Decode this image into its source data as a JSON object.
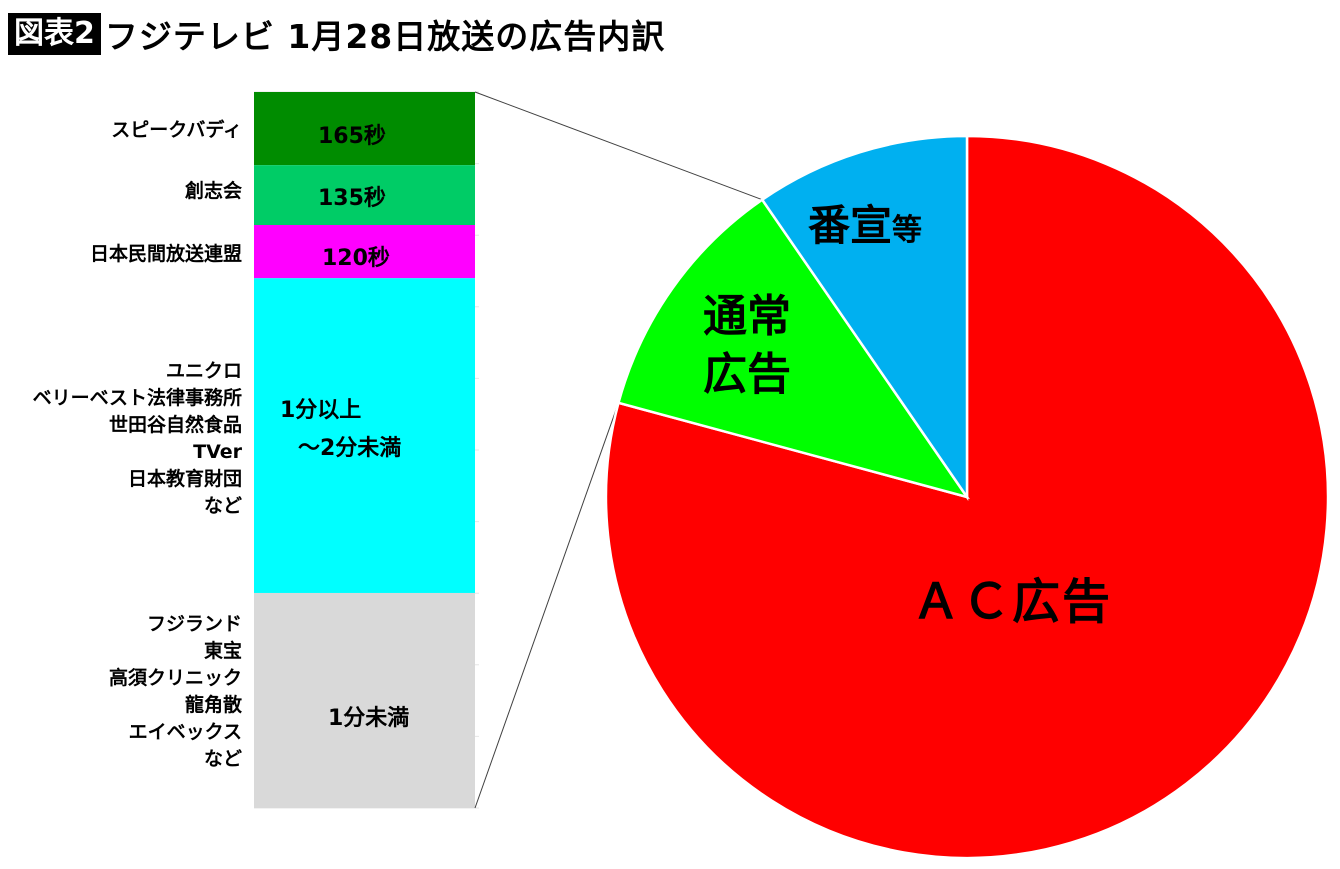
{
  "header": {
    "badge": "図表2",
    "title": "フジテレビ 1月28日放送の広告内訳"
  },
  "chart_data": [
    {
      "type": "pie",
      "start": "12 o'clock",
      "direction": "clockwise",
      "slices": [
        {
          "label": "ＡＣ広告",
          "value": 79.2,
          "color": "#FF0000"
        },
        {
          "label_lines": [
            "通常",
            "広告"
          ],
          "value": 11.2,
          "color": "#00FF00"
        },
        {
          "label": "番宣",
          "label_suffix": "等",
          "value": 9.6,
          "color": "#00B0F0"
        }
      ],
      "exploded_slice": "通常広告"
    },
    {
      "type": "bar",
      "stacked": true,
      "unit": "seconds",
      "grid": true,
      "segments": [
        {
          "category_lines": [
            "スピークバディ"
          ],
          "value": 165,
          "data_label_lines": [
            "165秒"
          ],
          "color": "#008C00"
        },
        {
          "category_lines": [
            "創志会"
          ],
          "value": 135,
          "data_label_lines": [
            "135秒"
          ],
          "color": "#00CC66"
        },
        {
          "category_lines": [
            "日本民間放送連盟"
          ],
          "value": 120,
          "data_label_lines": [
            "120秒"
          ],
          "color": "#FF00FF"
        },
        {
          "category_lines": [
            "ユニクロ",
            "ベリーベスト法律事務所",
            "世田谷自然食品",
            "TVer",
            "日本教育財団",
            "など"
          ],
          "value": 710,
          "data_label_lines": [
            "1分以上",
            "～2分未満"
          ],
          "color": "#00FFFF"
        },
        {
          "category_lines": [
            "フジランド",
            "東宝",
            "高須クリニック",
            "龍角散",
            "エイベックス",
            "など"
          ],
          "value": 485,
          "data_label_lines": [
            "1分未満"
          ],
          "color": "#D9D9D9"
        }
      ]
    }
  ]
}
